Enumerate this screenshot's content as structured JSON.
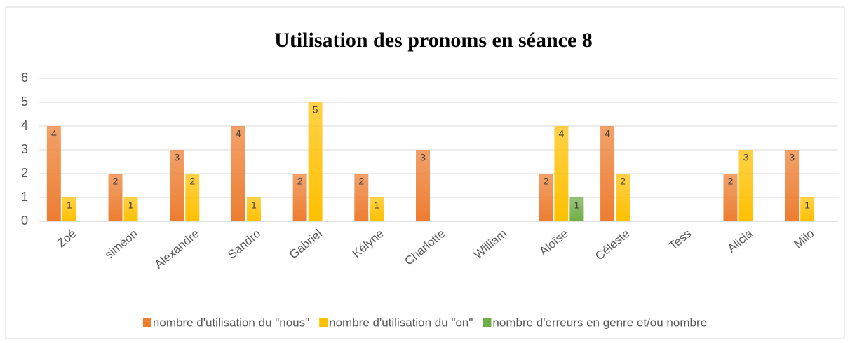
{
  "chart_data": {
    "type": "bar",
    "title": "Utilisation des pronoms en séance 8",
    "categories": [
      "Zoé",
      "siméon",
      "Alexandre",
      "Sandro",
      "Gabriel",
      "Kélyne",
      "Charlotte",
      "William",
      "Aloïse",
      "Céleste",
      "Tess",
      "Alicia",
      "Milo"
    ],
    "series": [
      {
        "name": "nombre d'utilisation du \"nous\"",
        "color": "#ed7d31",
        "values": [
          4,
          2,
          3,
          4,
          2,
          2,
          3,
          null,
          2,
          4,
          null,
          2,
          3
        ]
      },
      {
        "name": "nombre d'utilisation du \"on\"",
        "color": "#ffc000",
        "values": [
          1,
          1,
          2,
          1,
          5,
          1,
          null,
          null,
          4,
          2,
          null,
          3,
          1
        ]
      },
      {
        "name": "nombre d'erreurs en genre et/ou nombre",
        "color": "#70ad47",
        "values": [
          null,
          null,
          null,
          null,
          null,
          null,
          null,
          null,
          1,
          null,
          null,
          null,
          null
        ]
      }
    ],
    "ylim": [
      0,
      6
    ],
    "yticks": [
      0,
      1,
      2,
      3,
      4,
      5,
      6
    ],
    "grid": true,
    "legend": "bottom"
  }
}
